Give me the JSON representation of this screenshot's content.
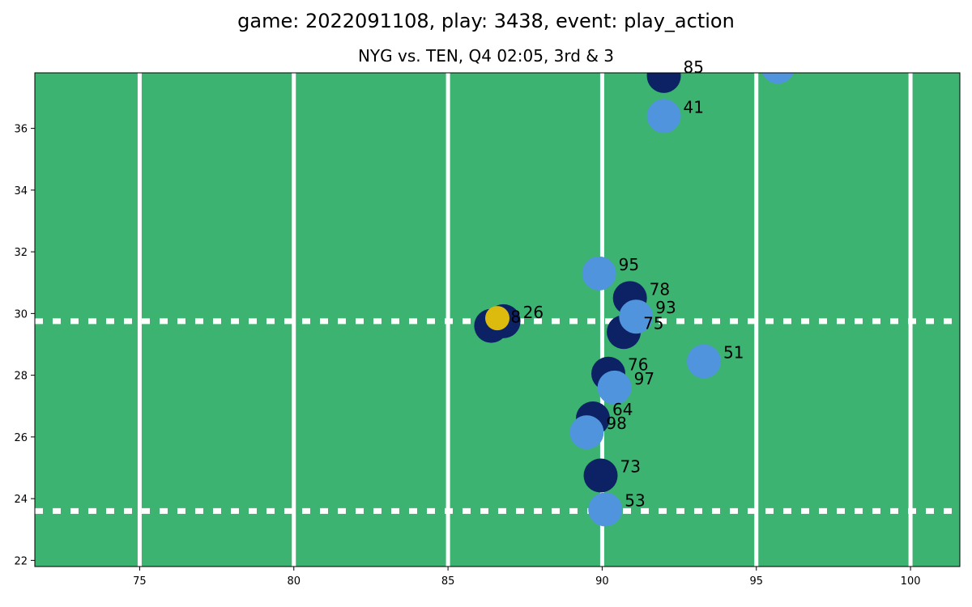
{
  "title": "game: 2022091108, play: 3438, event: play_action",
  "subtitle": "NYG vs. TEN, Q4 02:05, 3rd & 3",
  "chart_data": {
    "type": "scatter",
    "xlim": [
      71.6,
      101.6
    ],
    "ylim": [
      21.8,
      37.8
    ],
    "x_ticks": [
      75,
      80,
      85,
      90,
      95,
      100
    ],
    "y_ticks": [
      22,
      24,
      26,
      28,
      30,
      32,
      34,
      36
    ],
    "field_color": "#3cb371",
    "yard_lines_x": [
      75,
      80,
      85,
      90,
      95,
      100
    ],
    "hash_lines_y": [
      23.6,
      29.75
    ],
    "grid": false,
    "legend": "none",
    "series": [
      {
        "color": "#0c2265",
        "players": [
          {
            "x": 92.0,
            "y": 37.7,
            "label": "85"
          },
          {
            "x": 90.9,
            "y": 30.5,
            "label": "78"
          },
          {
            "x": 90.7,
            "y": 29.4,
            "label": "75"
          },
          {
            "x": 90.2,
            "y": 28.05,
            "label": "76"
          },
          {
            "x": 89.7,
            "y": 26.6,
            "label": "64"
          },
          {
            "x": 89.95,
            "y": 24.75,
            "label": "73"
          },
          {
            "x": 86.8,
            "y": 29.75,
            "label": "26"
          },
          {
            "x": 86.4,
            "y": 29.6,
            "label": "8"
          }
        ]
      },
      {
        "color": "#4f94dc",
        "players": [
          {
            "x": 95.7,
            "y": 38.0,
            "label": ""
          },
          {
            "x": 92.0,
            "y": 36.4,
            "label": "41"
          },
          {
            "x": 89.9,
            "y": 31.3,
            "label": "95"
          },
          {
            "x": 91.1,
            "y": 29.9,
            "label": "93"
          },
          {
            "x": 93.3,
            "y": 28.45,
            "label": "51"
          },
          {
            "x": 90.4,
            "y": 27.6,
            "label": "97"
          },
          {
            "x": 89.5,
            "y": 26.15,
            "label": "98"
          },
          {
            "x": 90.1,
            "y": 23.65,
            "label": "53"
          }
        ]
      },
      {
        "color": "#dcbb0e",
        "players": [
          {
            "x": 86.6,
            "y": 29.85,
            "label": ""
          }
        ]
      }
    ]
  }
}
